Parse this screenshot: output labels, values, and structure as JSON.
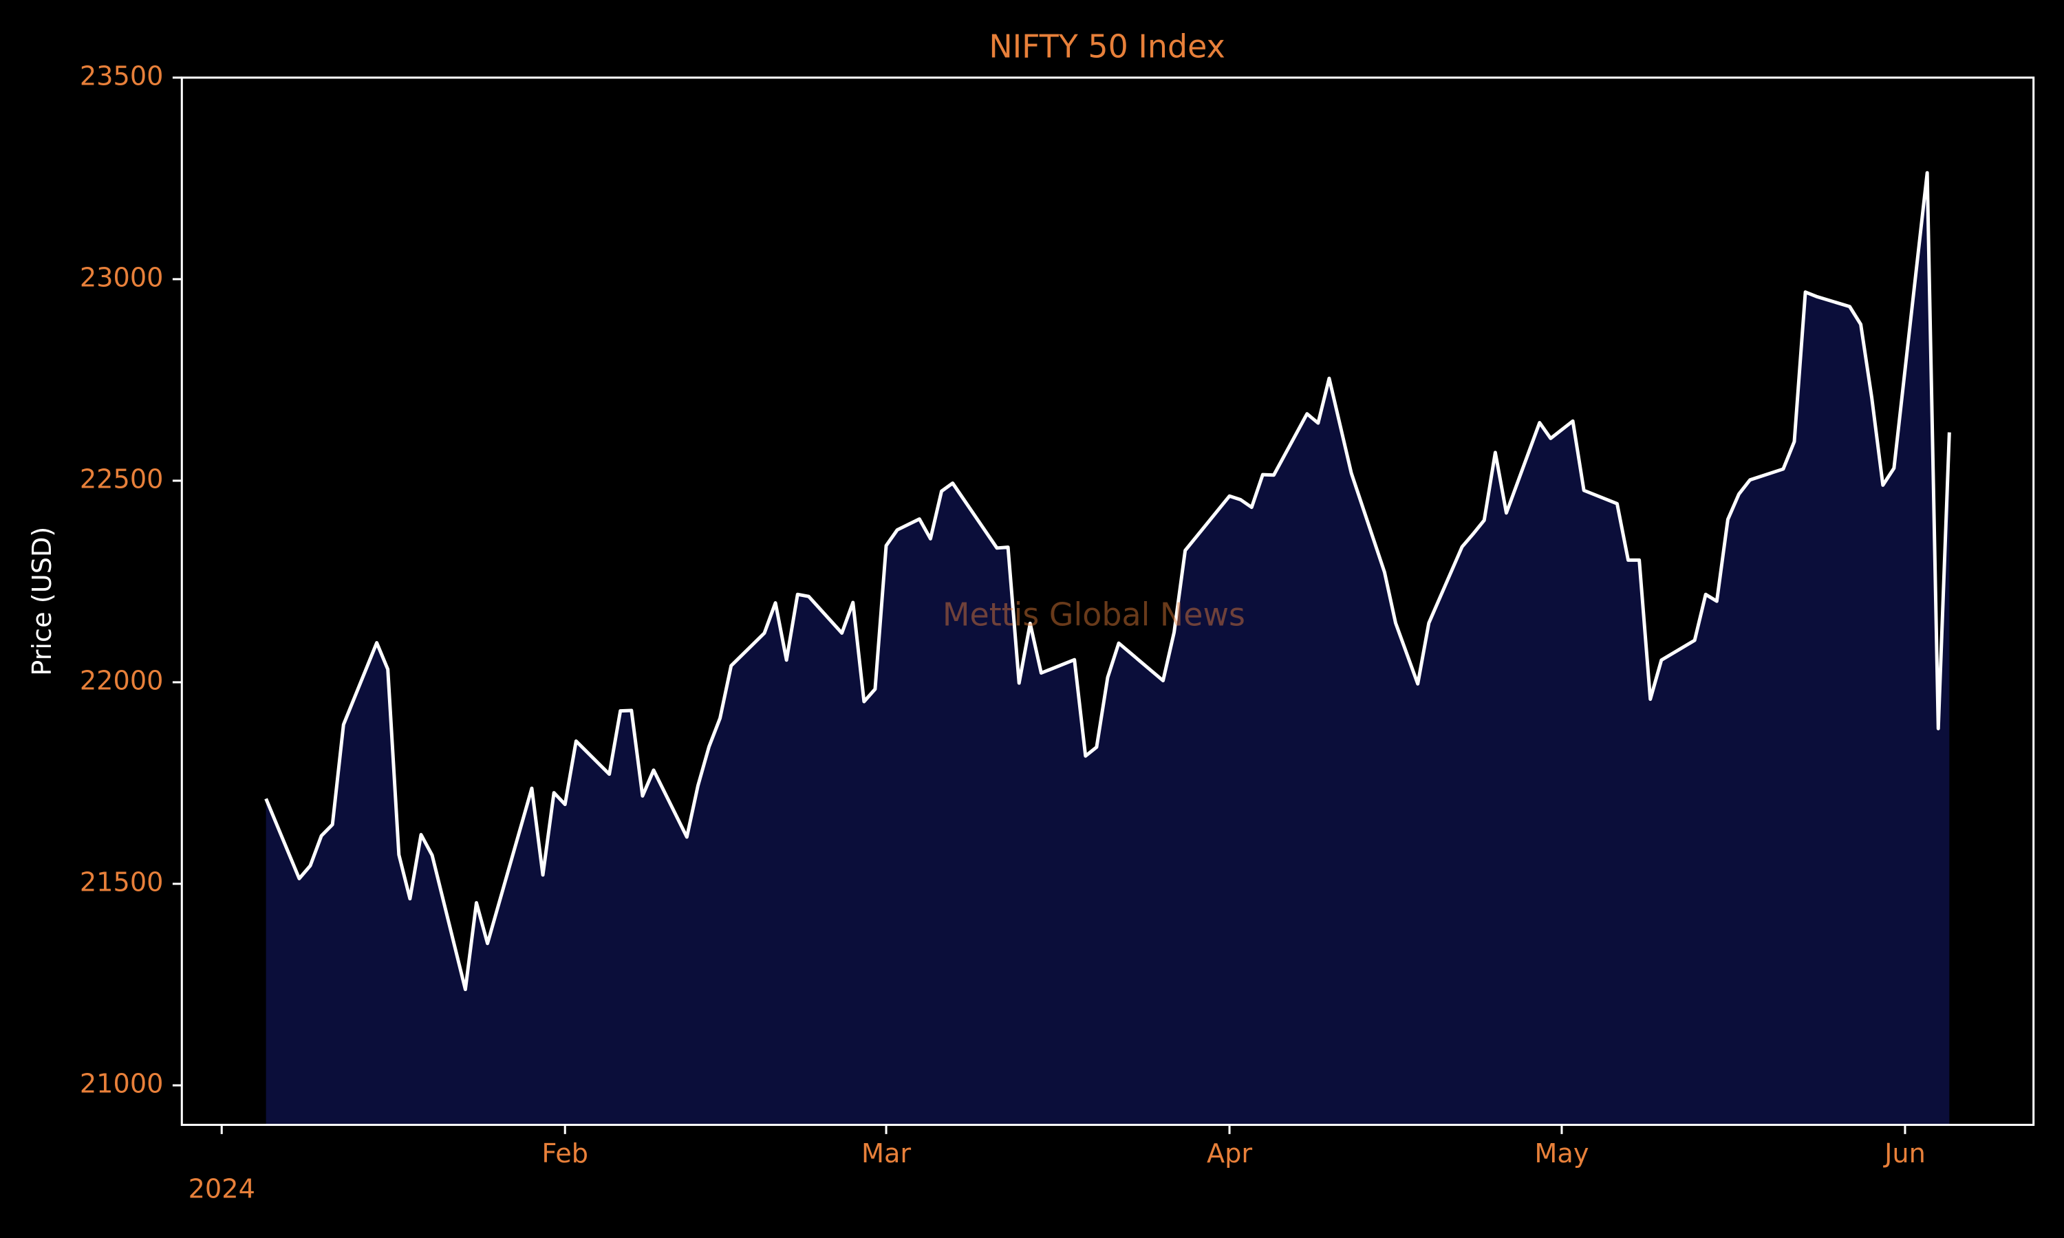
{
  "chart_data": {
    "type": "area",
    "title": "NIFTY 50 Index",
    "ylabel": "Price (USD)",
    "watermark": "Mettis Global News",
    "line_color": "#ffffff",
    "fill_color": "#0b0e3a",
    "text_color": "#e8803a",
    "xlim": [
      -3.6,
      163.6
    ],
    "xticks": [
      {
        "value": 0,
        "label": "2024"
      },
      {
        "value": 31,
        "label": "Feb"
      },
      {
        "value": 60,
        "label": "Mar"
      },
      {
        "value": 91,
        "label": "Apr"
      },
      {
        "value": 121,
        "label": "May"
      },
      {
        "value": 152,
        "label": "Jun"
      }
    ],
    "ylim": [
      20902,
      23500
    ],
    "yticks": [
      21000,
      21500,
      22000,
      22500,
      23000,
      23500
    ],
    "x": [
      4,
      7,
      8,
      9,
      10,
      11,
      14,
      15,
      16,
      17,
      18,
      19,
      22,
      23,
      24,
      28,
      29,
      30,
      31,
      32,
      35,
      36,
      37,
      38,
      39,
      42,
      43,
      44,
      45,
      46,
      49,
      50,
      51,
      52,
      53,
      56,
      57,
      58,
      59,
      60,
      61,
      63,
      64,
      65,
      66,
      70,
      71,
      72,
      73,
      74,
      77,
      78,
      79,
      80,
      81,
      85,
      86,
      87,
      91,
      92,
      93,
      94,
      95,
      98,
      99,
      100,
      102,
      105,
      106,
      108,
      109,
      112,
      113,
      114,
      115,
      116,
      119,
      120,
      122,
      123,
      126,
      127,
      128,
      129,
      130,
      133,
      134,
      135,
      136,
      137,
      138,
      141,
      142,
      143,
      144,
      147,
      148,
      149,
      150,
      151,
      154,
      155,
      156
    ],
    "values": [
      21711,
      21513,
      21545,
      21619,
      21647,
      21895,
      22098,
      22032,
      21572,
      21463,
      21622,
      21571,
      21238,
      21453,
      21352,
      21737,
      21522,
      21726,
      21697,
      21854,
      21772,
      21929,
      21930,
      21718,
      21782,
      21616,
      21743,
      21840,
      21911,
      22041,
      22122,
      22197,
      22055,
      22218,
      22213,
      22122,
      22198,
      21952,
      21983,
      22339,
      22378,
      22405,
      22356,
      22474,
      22494,
      22333,
      22335,
      21998,
      22146,
      22023,
      22056,
      21817,
      21839,
      22012,
      22097,
      22004,
      22124,
      22327,
      22462,
      22453,
      22434,
      22515,
      22514,
      22666,
      22643,
      22754,
      22519,
      22273,
      22147,
      21996,
      22147,
      22336,
      22368,
      22402,
      22570,
      22420,
      22644,
      22605,
      22648,
      22476,
      22443,
      22303,
      22303,
      21958,
      22055,
      22104,
      22218,
      22201,
      22404,
      22467,
      22502,
      22529,
      22597,
      22968,
      22957,
      22932,
      22888,
      22705,
      22489,
      22531,
      23264,
      21885,
      22620
    ]
  }
}
